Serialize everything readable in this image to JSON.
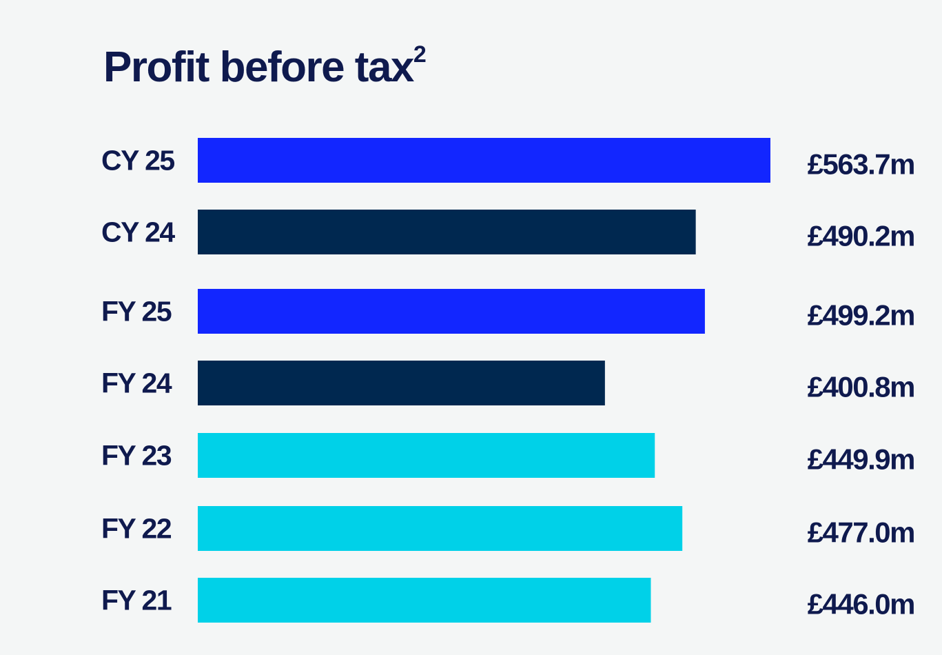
{
  "chart_data": {
    "type": "bar",
    "orientation": "horizontal",
    "title": "Profit before tax",
    "title_superscript": "2",
    "categories": [
      "CY 25",
      "CY 24",
      "FY 25",
      "FY 24",
      "FY 23",
      "FY 22",
      "FY 21"
    ],
    "values": [
      563.7,
      490.2,
      499.2,
      400.8,
      449.9,
      477.0,
      446.0
    ],
    "value_labels": [
      "£563.7m",
      "£490.2m",
      "£499.2m",
      "£400.8m",
      "£449.9m",
      "£477.0m",
      "£446.0m"
    ],
    "unit": "£m",
    "bar_colors": [
      "#1226ff",
      "#002850",
      "#1226ff",
      "#002850",
      "#00d1e8",
      "#00d1e8",
      "#00d1e8"
    ],
    "xlim": [
      0,
      563.7
    ],
    "grid": false,
    "legend": "none"
  }
}
